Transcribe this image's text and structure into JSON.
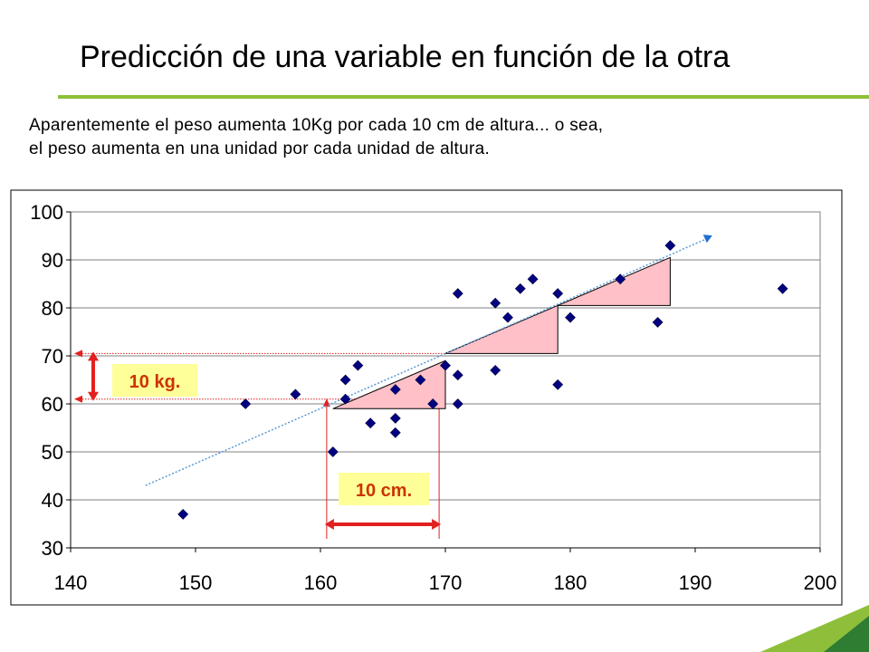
{
  "slide": {
    "title": "Predicción de una variable en función de la otra",
    "text_line_1": "Aparentemente el peso aumenta 10Kg por cada 10 cm de altura... o sea,",
    "text_line_2": "el peso aumenta en una unidad por cada unidad de altura.",
    "accent_color": "#8fbf3a",
    "accent_color_dark": "#2e7d32"
  },
  "chart_data": {
    "type": "scatter",
    "title": "",
    "xlabel": "",
    "ylabel": "",
    "xlim": [
      140,
      200
    ],
    "ylim": [
      30,
      100
    ],
    "x_ticks": [
      "140",
      "150",
      "160",
      "170",
      "180",
      "190",
      "200"
    ],
    "y_ticks": [
      "30",
      "40",
      "50",
      "60",
      "70",
      "80",
      "90",
      "100"
    ],
    "grid": "horizontal",
    "legend": "none",
    "marker_color": "#000080",
    "series": [
      {
        "points": [
          {
            "x": 149,
            "y": 37
          },
          {
            "x": 154,
            "y": 60
          },
          {
            "x": 158,
            "y": 62
          },
          {
            "x": 161,
            "y": 50
          },
          {
            "x": 162,
            "y": 61
          },
          {
            "x": 162,
            "y": 65
          },
          {
            "x": 163,
            "y": 68
          },
          {
            "x": 164,
            "y": 56
          },
          {
            "x": 166,
            "y": 57
          },
          {
            "x": 166,
            "y": 54
          },
          {
            "x": 166,
            "y": 63
          },
          {
            "x": 168,
            "y": 65
          },
          {
            "x": 169,
            "y": 60
          },
          {
            "x": 170,
            "y": 68
          },
          {
            "x": 171,
            "y": 66
          },
          {
            "x": 171,
            "y": 60
          },
          {
            "x": 171,
            "y": 83
          },
          {
            "x": 174,
            "y": 81
          },
          {
            "x": 174,
            "y": 67
          },
          {
            "x": 175,
            "y": 78
          },
          {
            "x": 176,
            "y": 84
          },
          {
            "x": 177,
            "y": 86
          },
          {
            "x": 179,
            "y": 83
          },
          {
            "x": 179,
            "y": 64
          },
          {
            "x": 180,
            "y": 78
          },
          {
            "x": 184,
            "y": 86
          },
          {
            "x": 187,
            "y": 77
          },
          {
            "x": 188,
            "y": 93
          },
          {
            "x": 197,
            "y": 84
          }
        ]
      }
    ],
    "trend_line": {
      "x1": 146,
      "y1": 43,
      "x2": 191,
      "y2": 94.5,
      "color": "#5b9bd5"
    },
    "triangles": [
      {
        "x1": 161,
        "y1": 59,
        "x2": 170,
        "y2": 69
      },
      {
        "x1": 170,
        "y1": 70.5,
        "x2": 179,
        "y2": 80.5
      },
      {
        "x1": 179,
        "y1": 80.5,
        "x2": 188,
        "y2": 90.5
      }
    ],
    "triangle_fill": "#ffc0c8",
    "annotations": {
      "kg_label": "10 kg.",
      "cm_label": "10 cm.",
      "label_bg": "#ffff99",
      "label_color": "#cc3300",
      "arrow_color": "#e32020",
      "guide_color": "#e32020",
      "kg_guides": [
        61,
        70.5
      ],
      "cm_guides": [
        160.5,
        169.5
      ]
    }
  }
}
